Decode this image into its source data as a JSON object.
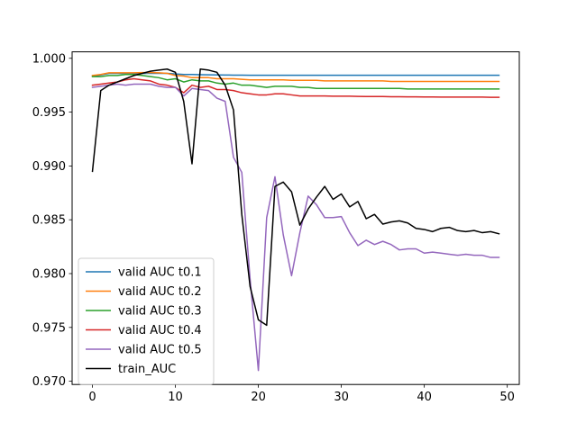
{
  "chart_data": {
    "type": "line",
    "title": "",
    "xlabel": "",
    "ylabel": "",
    "xlim": [
      -2.45,
      51.45
    ],
    "ylim": [
      0.9697,
      1.0006
    ],
    "xticks": [
      0,
      10,
      20,
      30,
      40,
      50
    ],
    "yticks": [
      0.97,
      0.975,
      0.98,
      0.985,
      0.99,
      0.995,
      1.0
    ],
    "ytick_labels": [
      "0.970",
      "0.975",
      "0.980",
      "0.985",
      "0.990",
      "0.995",
      "1.000"
    ],
    "grid": false,
    "legend_position": "lower-left",
    "x": [
      0,
      1,
      2,
      3,
      4,
      5,
      6,
      7,
      8,
      9,
      10,
      11,
      12,
      13,
      14,
      15,
      16,
      17,
      18,
      19,
      20,
      21,
      22,
      23,
      24,
      25,
      26,
      27,
      28,
      29,
      30,
      31,
      32,
      33,
      34,
      35,
      36,
      37,
      38,
      39,
      40,
      41,
      42,
      43,
      44,
      45,
      46,
      47,
      48,
      49
    ],
    "series": [
      {
        "name": "valid AUC t0.1",
        "color": "#1f77b4",
        "values": [
          0.99835,
          0.99845,
          0.9986,
          0.9986,
          0.9986,
          0.9986,
          0.9986,
          0.9986,
          0.9986,
          0.9986,
          0.99855,
          0.9985,
          0.9985,
          0.99848,
          0.99847,
          0.99846,
          0.99845,
          0.99844,
          0.99843,
          0.99842,
          0.99842,
          0.99842,
          0.99842,
          0.99842,
          0.99842,
          0.99842,
          0.99842,
          0.99842,
          0.99842,
          0.99842,
          0.99842,
          0.99842,
          0.99842,
          0.99842,
          0.99842,
          0.99842,
          0.99842,
          0.99842,
          0.99842,
          0.99842,
          0.99842,
          0.99842,
          0.99842,
          0.99842,
          0.99842,
          0.99842,
          0.99842,
          0.99842,
          0.99842,
          0.99842
        ]
      },
      {
        "name": "valid AUC t0.2",
        "color": "#ff7f0e",
        "values": [
          0.9984,
          0.9985,
          0.99865,
          0.99865,
          0.99865,
          0.99865,
          0.99868,
          0.99868,
          0.99865,
          0.9986,
          0.9984,
          0.99835,
          0.9982,
          0.9982,
          0.9982,
          0.9981,
          0.9981,
          0.9981,
          0.99805,
          0.998,
          0.998,
          0.998,
          0.998,
          0.998,
          0.99795,
          0.99795,
          0.99795,
          0.99795,
          0.9979,
          0.9979,
          0.9979,
          0.9979,
          0.9979,
          0.9979,
          0.9979,
          0.9979,
          0.99785,
          0.99785,
          0.99785,
          0.99785,
          0.99785,
          0.99785,
          0.99785,
          0.99785,
          0.99785,
          0.99785,
          0.99785,
          0.99785,
          0.99785,
          0.99785
        ]
      },
      {
        "name": "valid AUC t0.3",
        "color": "#2ca02c",
        "values": [
          0.9983,
          0.9983,
          0.9984,
          0.9984,
          0.9985,
          0.9985,
          0.9984,
          0.9983,
          0.9982,
          0.998,
          0.9981,
          0.9978,
          0.998,
          0.9979,
          0.9979,
          0.9977,
          0.9976,
          0.9977,
          0.9975,
          0.9975,
          0.9974,
          0.9973,
          0.9974,
          0.9974,
          0.9974,
          0.9973,
          0.9973,
          0.9972,
          0.9972,
          0.9972,
          0.9972,
          0.9972,
          0.9972,
          0.9972,
          0.9972,
          0.9972,
          0.9972,
          0.9972,
          0.99715,
          0.99715,
          0.99715,
          0.99715,
          0.99715,
          0.99715,
          0.99715,
          0.99715,
          0.99715,
          0.99715,
          0.99715,
          0.99715
        ]
      },
      {
        "name": "valid AUC t0.4",
        "color": "#d62728",
        "values": [
          0.9975,
          0.9976,
          0.9977,
          0.9978,
          0.998,
          0.9981,
          0.998,
          0.9979,
          0.9976,
          0.9975,
          0.9973,
          0.9968,
          0.9975,
          0.9973,
          0.9974,
          0.9971,
          0.9971,
          0.997,
          0.9968,
          0.9967,
          0.9966,
          0.9966,
          0.9967,
          0.9967,
          0.9966,
          0.9965,
          0.9965,
          0.9965,
          0.9965,
          0.99648,
          0.99648,
          0.99648,
          0.99646,
          0.99645,
          0.99645,
          0.99645,
          0.99643,
          0.99643,
          0.99642,
          0.99642,
          0.99641,
          0.99641,
          0.9964,
          0.9964,
          0.9964,
          0.9964,
          0.9964,
          0.9964,
          0.99638,
          0.99638
        ]
      },
      {
        "name": "valid AUC t0.5",
        "color": "#9467bd",
        "values": [
          0.9973,
          0.9974,
          0.9975,
          0.9976,
          0.9975,
          0.9976,
          0.9976,
          0.9976,
          0.9974,
          0.9973,
          0.9973,
          0.9965,
          0.9972,
          0.9971,
          0.997,
          0.9963,
          0.996,
          0.9908,
          0.9894,
          0.9795,
          0.971,
          0.9852,
          0.989,
          0.9836,
          0.9798,
          0.9838,
          0.9872,
          0.9864,
          0.9852,
          0.9852,
          0.9853,
          0.9838,
          0.9826,
          0.9831,
          0.9827,
          0.983,
          0.9827,
          0.9822,
          0.9823,
          0.9823,
          0.9819,
          0.982,
          0.9819,
          0.9818,
          0.9817,
          0.9818,
          0.9817,
          0.9817,
          0.9815,
          0.9815
        ]
      },
      {
        "name": "train_AUC",
        "color": "#000000",
        "values": [
          0.9895,
          0.997,
          0.9975,
          0.9978,
          0.9981,
          0.9984,
          0.9986,
          0.9988,
          0.9989,
          0.999,
          0.9987,
          0.996,
          0.9902,
          0.999,
          0.9989,
          0.9987,
          0.9975,
          0.9952,
          0.9855,
          0.9788,
          0.9757,
          0.9752,
          0.9881,
          0.9885,
          0.9876,
          0.9845,
          0.986,
          0.9871,
          0.9881,
          0.9869,
          0.9874,
          0.9862,
          0.9867,
          0.9851,
          0.9855,
          0.9846,
          0.9848,
          0.9849,
          0.9847,
          0.9842,
          0.9841,
          0.9839,
          0.9842,
          0.9843,
          0.984,
          0.9839,
          0.984,
          0.9838,
          0.9839,
          0.9837
        ]
      }
    ]
  }
}
